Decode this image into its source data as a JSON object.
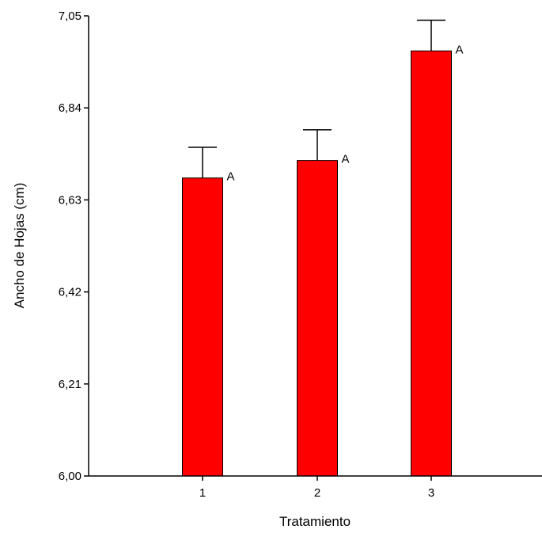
{
  "chart_data": {
    "type": "bar",
    "title": "",
    "xlabel": "Tratamiento",
    "ylabel": "Ancho de Hojas (cm)",
    "categories": [
      "1",
      "2",
      "3"
    ],
    "values": [
      6.68,
      6.72,
      6.97
    ],
    "error_upper": [
      6.75,
      6.79,
      7.04
    ],
    "significance_letters": [
      "A",
      "A",
      "A"
    ],
    "ylim": [
      6.0,
      7.05
    ],
    "yticks": [
      6.0,
      6.21,
      6.42,
      6.63,
      6.84,
      7.05
    ],
    "ytick_labels": [
      "6,00",
      "6,21",
      "6,42",
      "6,63",
      "6,84",
      "7,05"
    ],
    "bar_color": "#ff0000",
    "bar_edge_color": "#000000",
    "grid": false,
    "legend": "none"
  }
}
